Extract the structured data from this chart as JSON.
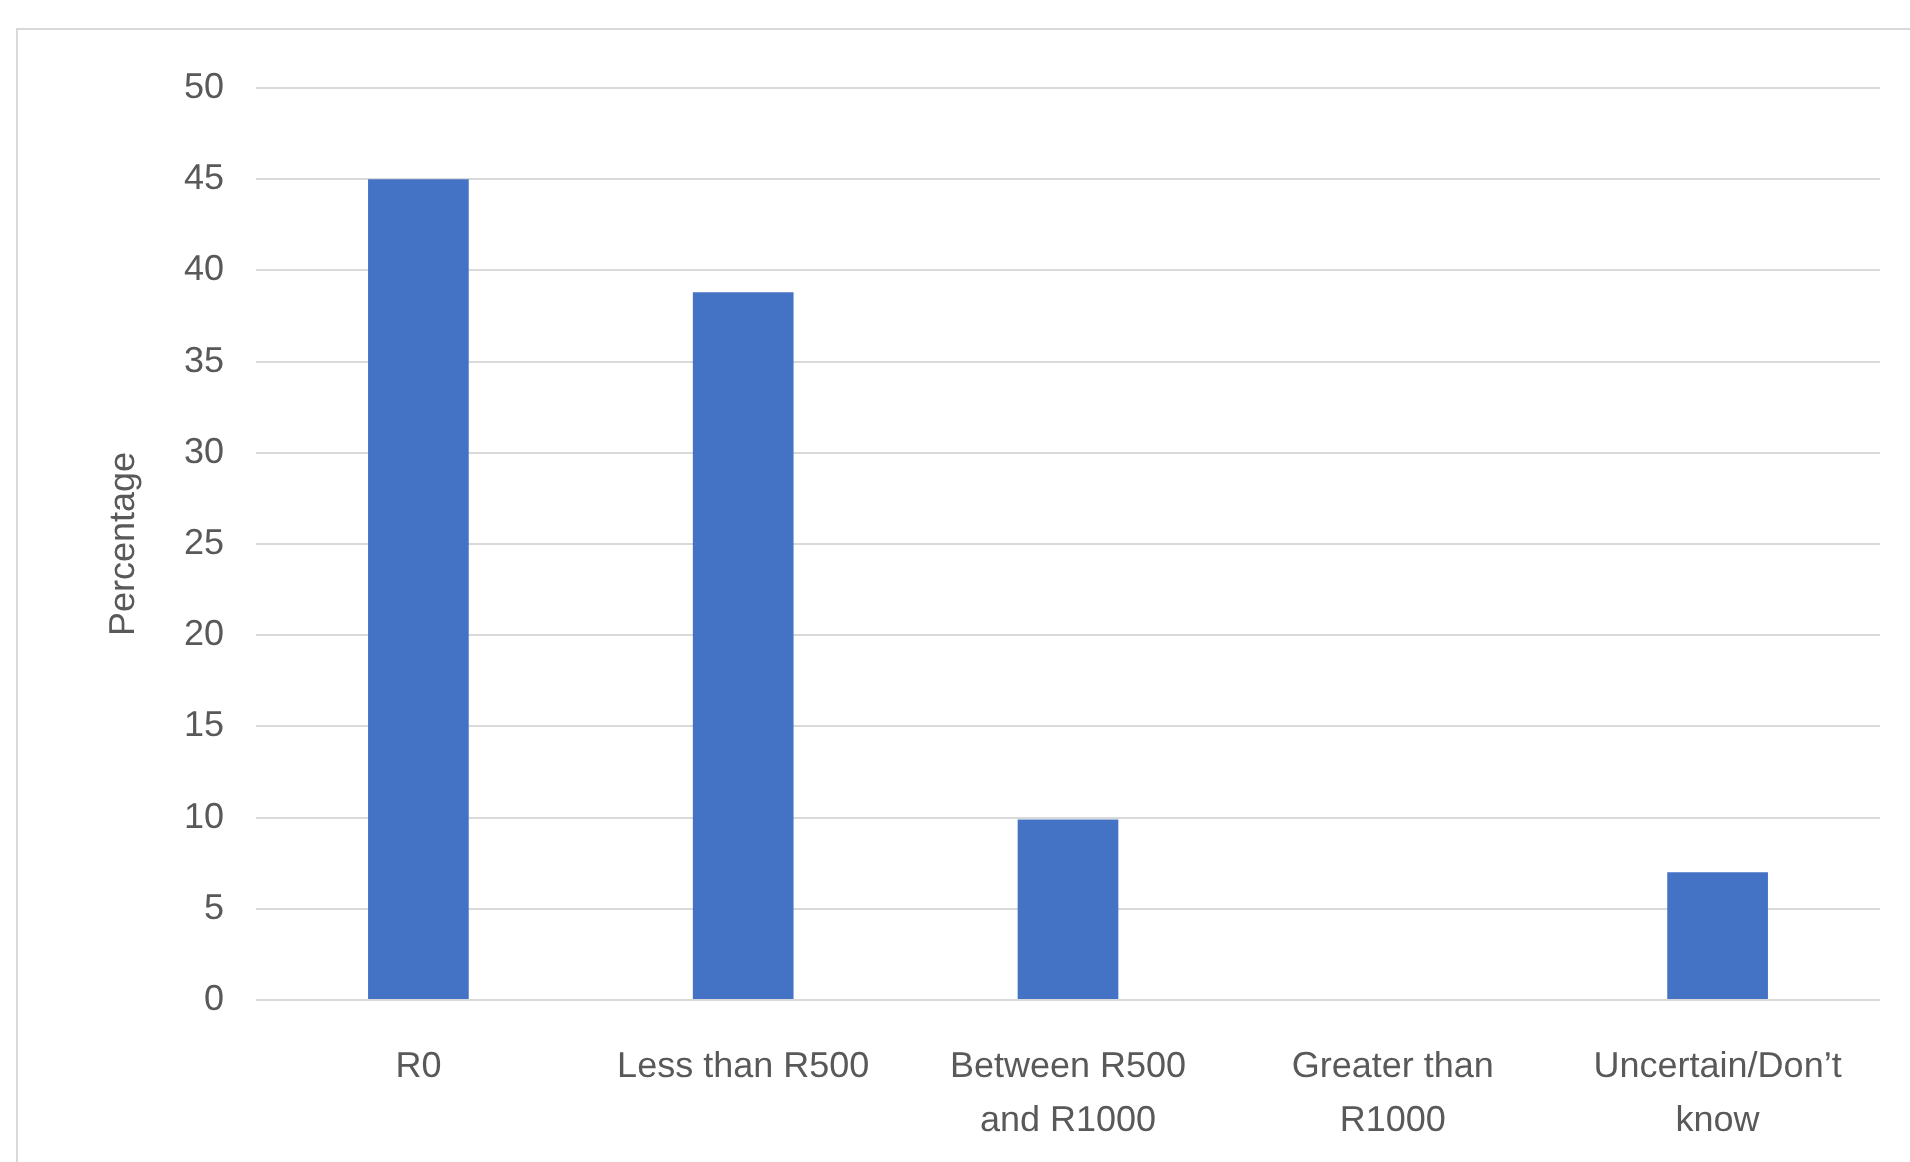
{
  "chart_data": {
    "type": "bar",
    "ylabel": "Percentage",
    "categories": [
      "R0",
      "Less than R500",
      "Between R500 and R1000",
      "Greater than R1000",
      "Uncertain/Don’t know"
    ],
    "values": [
      45,
      38.8,
      9.9,
      0,
      7
    ],
    "color": "#4472c4",
    "ylim": [
      0,
      50
    ],
    "yticks": [
      0,
      5,
      10,
      15,
      20,
      25,
      30,
      35,
      40,
      45,
      50
    ],
    "grid": "y"
  }
}
